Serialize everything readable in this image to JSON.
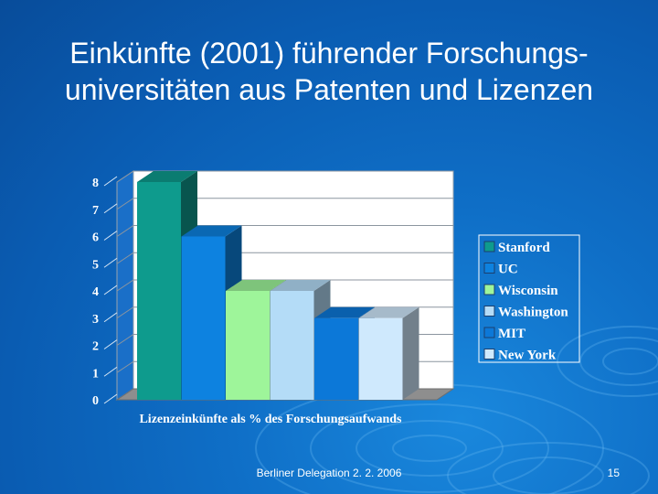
{
  "slide": {
    "title_line1": "Einkünfte (2001) führender Forschungs-",
    "title_line2": "universitäten aus Patenten und Lizenzen",
    "footer": "Berliner Delegation 2. 2. 2006",
    "page_number": "15"
  },
  "chart_data": {
    "type": "bar",
    "title": "",
    "xlabel": "Lizenzeinkünfte als % des Forschungsaufwands",
    "ylabel": "",
    "ylim": [
      0,
      8
    ],
    "yticks": [
      "0",
      "1",
      "2",
      "3",
      "4",
      "5",
      "6",
      "7",
      "8"
    ],
    "grid": true,
    "legend_position": "right",
    "series": [
      {
        "name": "Stanford",
        "value": 8,
        "color": "#0e9b8d"
      },
      {
        "name": "UC",
        "value": 6,
        "color": "#0d82e0"
      },
      {
        "name": "Wisconsin",
        "value": 4,
        "color": "#9ef59a"
      },
      {
        "name": "Washington",
        "value": 4,
        "color": "#b4dcf7"
      },
      {
        "name": "MIT",
        "value": 3,
        "color": "#0c78d8"
      },
      {
        "name": "New York",
        "value": 3,
        "color": "#cfe9fd"
      }
    ]
  }
}
